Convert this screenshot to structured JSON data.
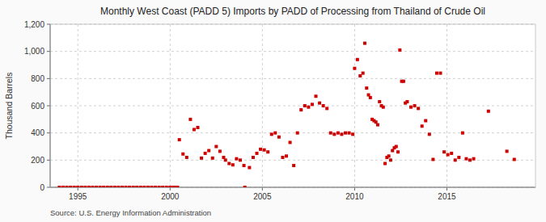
{
  "chart_data": {
    "type": "scatter",
    "title": "Monthly West Coast (PADD 5) Imports by PADD of Processing from Thailand of Crude Oil",
    "ylabel": "Thousand Barrels",
    "source": "Source: U.S. Energy Information Administration",
    "color": "#cc0000",
    "marker": "square",
    "grid": true,
    "xlim": [
      1993.5,
      2019.8
    ],
    "xticks": [
      1995,
      2000,
      2005,
      2010,
      2015
    ],
    "ylim": [
      0,
      1200
    ],
    "yticks": [
      0,
      200,
      400,
      600,
      800,
      {
        "value": 1000,
        "label": "1,000"
      },
      {
        "value": 1200,
        "label": "1,200"
      }
    ],
    "x": [
      1994.0,
      1994.2,
      1994.4,
      1994.6,
      1994.8,
      1995.0,
      1995.2,
      1995.4,
      1995.6,
      1995.8,
      1996.0,
      1996.2,
      1996.4,
      1996.6,
      1996.8,
      1997.0,
      1997.2,
      1997.4,
      1997.6,
      1997.8,
      1998.0,
      1998.2,
      1998.4,
      1998.6,
      1998.8,
      1999.0,
      1999.2,
      1999.4,
      1999.6,
      1999.8,
      2000.0,
      2000.1,
      2000.2,
      2000.3,
      2000.4,
      2000.5,
      2000.7,
      2000.9,
      2001.1,
      2001.3,
      2001.5,
      2001.7,
      2001.9,
      2002.1,
      2002.3,
      2002.5,
      2002.7,
      2002.9,
      2003.0,
      2003.2,
      2003.4,
      2003.6,
      2003.8,
      2004.0,
      2004.05,
      2004.3,
      2004.5,
      2004.7,
      2004.9,
      2005.1,
      2005.3,
      2005.5,
      2005.7,
      2005.9,
      2006.1,
      2006.3,
      2006.5,
      2006.7,
      2006.9,
      2007.1,
      2007.3,
      2007.5,
      2007.7,
      2007.9,
      2008.1,
      2008.3,
      2008.5,
      2008.7,
      2008.9,
      2009.1,
      2009.3,
      2009.5,
      2009.7,
      2009.9,
      2010.0,
      2010.15,
      2010.3,
      2010.45,
      2010.55,
      2010.65,
      2010.75,
      2010.85,
      2010.95,
      2011.05,
      2011.15,
      2011.25,
      2011.35,
      2011.45,
      2011.55,
      2011.65,
      2011.75,
      2011.85,
      2011.95,
      2012.05,
      2012.15,
      2012.25,
      2012.35,
      2012.45,
      2012.55,
      2012.65,
      2012.75,
      2012.85,
      2013.05,
      2013.25,
      2013.45,
      2013.65,
      2013.85,
      2014.05,
      2014.25,
      2014.45,
      2014.65,
      2014.85,
      2015.05,
      2015.25,
      2015.45,
      2015.65,
      2015.85,
      2016.05,
      2016.25,
      2016.45,
      2017.25,
      2018.25,
      2018.65
    ],
    "values": [
      0,
      0,
      0,
      0,
      0,
      0,
      0,
      0,
      0,
      0,
      0,
      0,
      0,
      0,
      0,
      0,
      0,
      0,
      0,
      0,
      0,
      0,
      0,
      0,
      0,
      0,
      0,
      0,
      0,
      0,
      0,
      0,
      0,
      0,
      0,
      350,
      245,
      220,
      500,
      425,
      440,
      215,
      250,
      270,
      215,
      300,
      265,
      220,
      200,
      175,
      165,
      210,
      200,
      160,
      0,
      145,
      220,
      250,
      280,
      275,
      260,
      390,
      400,
      370,
      220,
      230,
      330,
      160,
      400,
      570,
      600,
      590,
      610,
      670,
      620,
      600,
      580,
      400,
      390,
      400,
      390,
      400,
      400,
      390,
      875,
      940,
      820,
      840,
      1060,
      730,
      680,
      660,
      500,
      490,
      480,
      460,
      630,
      600,
      590,
      175,
      220,
      230,
      200,
      270,
      290,
      300,
      260,
      1010,
      780,
      780,
      620,
      630,
      590,
      600,
      580,
      450,
      490,
      390,
      205,
      840,
      840,
      260,
      240,
      250,
      200,
      220,
      400,
      210,
      200,
      210,
      560,
      265,
      205
    ]
  }
}
